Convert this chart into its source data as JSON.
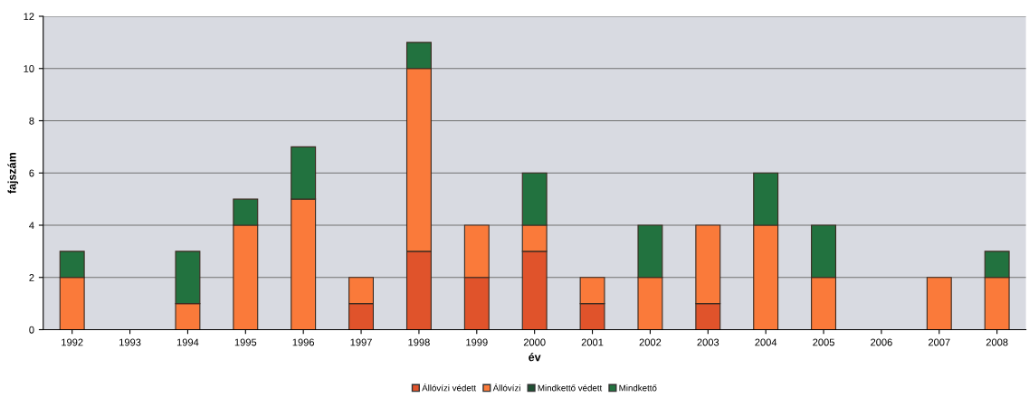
{
  "chart_data": {
    "type": "bar",
    "stacked": true,
    "xlabel": "év",
    "ylabel": "fajszám",
    "categories": [
      "1992",
      "1993",
      "1994",
      "1995",
      "1996",
      "1997",
      "1998",
      "1999",
      "2000",
      "2001",
      "2002",
      "2003",
      "2004",
      "2005",
      "2006",
      "2007",
      "2008"
    ],
    "series": [
      {
        "name": "Állóvízi védett",
        "color": "#e0532b",
        "values": [
          null,
          null,
          null,
          null,
          null,
          1,
          3,
          2,
          3,
          1,
          null,
          1,
          null,
          null,
          null,
          null,
          null
        ]
      },
      {
        "name": "Állóvízi",
        "color": "#fa7a3a",
        "values": [
          2,
          null,
          1,
          4,
          5,
          1,
          7,
          2,
          1,
          1,
          2,
          3,
          4,
          2,
          null,
          2,
          2
        ]
      },
      {
        "name": "Mindkettő védett",
        "color": "#1f4f33",
        "values": [
          null,
          null,
          null,
          null,
          null,
          null,
          null,
          null,
          null,
          null,
          null,
          null,
          null,
          null,
          null,
          null,
          null
        ]
      },
      {
        "name": "Mindkettő",
        "color": "#22723f",
        "values": [
          1,
          null,
          2,
          1,
          2,
          null,
          1,
          null,
          2,
          null,
          2,
          null,
          2,
          2,
          null,
          null,
          1
        ]
      }
    ],
    "ylim": [
      0,
      12
    ],
    "yticks": [
      0,
      2,
      4,
      6,
      8,
      10,
      12
    ],
    "grid": "y",
    "legend": "bottom"
  }
}
